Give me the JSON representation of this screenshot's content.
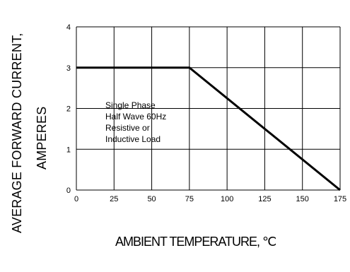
{
  "chart_data": {
    "type": "line",
    "ylabel_line1": "AVERAGE FORWARD CURRENT,",
    "ylabel_line2": "AMPERES",
    "xlabel": "AMBIENT TEMPERATURE, ℃",
    "xlim": [
      0,
      175
    ],
    "ylim": [
      0,
      4
    ],
    "xticks": [
      0,
      25,
      50,
      75,
      100,
      125,
      150,
      175
    ],
    "yticks": [
      0,
      1,
      2,
      3,
      4
    ],
    "grid": true,
    "series": [
      {
        "x": [
          0,
          75,
          175
        ],
        "y": [
          3,
          3,
          0
        ]
      }
    ],
    "annotation": [
      "Single Phase",
      "Half Wave 60Hz",
      "Resistive or",
      "Inductive Load"
    ]
  }
}
